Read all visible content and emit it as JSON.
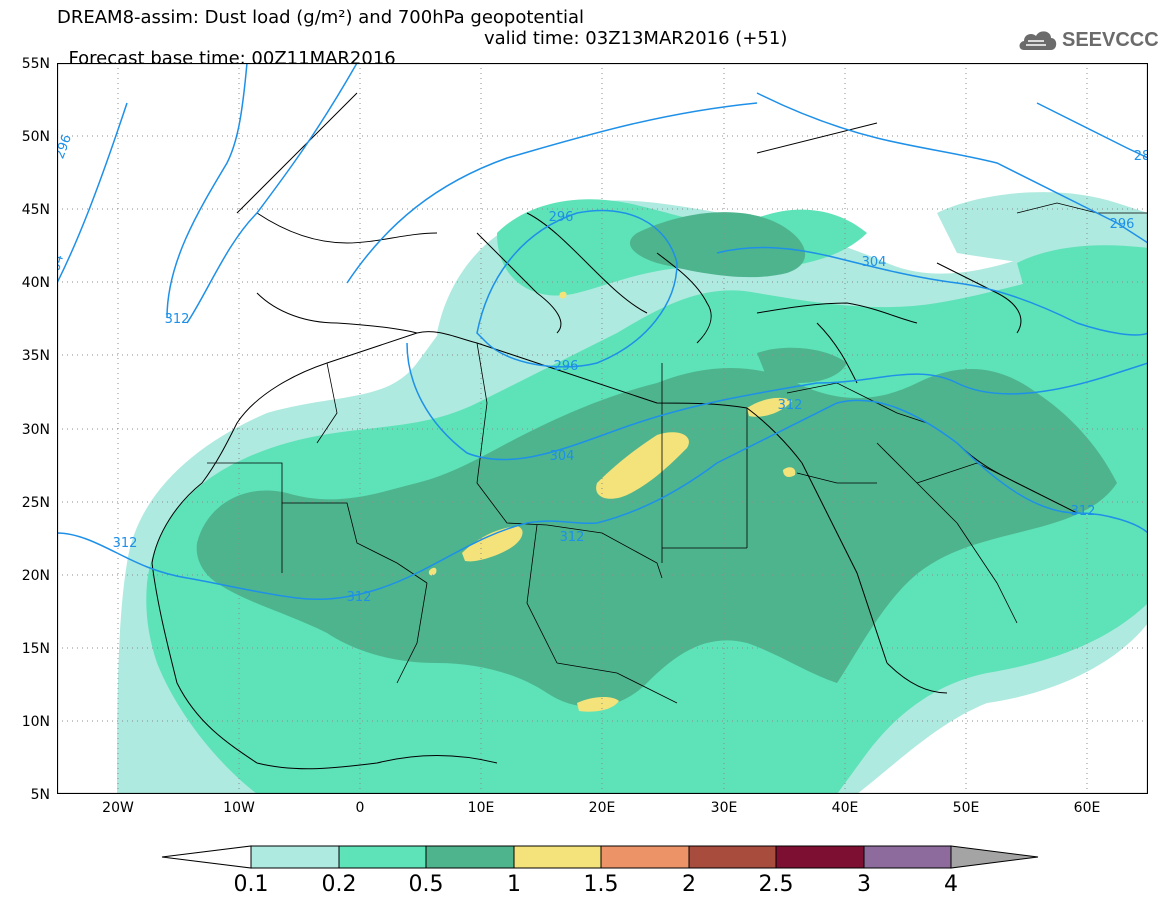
{
  "title_line1": "DREAM8-assim: Dust load (g/m²) and 700hPa geopotential",
  "title_line2_base": "Forecast base time: 00Z11MAR2016",
  "title_line2_valid": "valid time: 03Z13MAR2016 (+51)",
  "logo_text": "SEEVCCC",
  "logo_icon": "cloud-icon",
  "y_axis": {
    "labels": [
      "55N",
      "50N",
      "45N",
      "40N",
      "35N",
      "30N",
      "25N",
      "20N",
      "15N",
      "10N",
      "5N"
    ],
    "lat_values": [
      55,
      50,
      45,
      40,
      35,
      30,
      25,
      20,
      15,
      10,
      5
    ]
  },
  "x_axis": {
    "labels": [
      "20W",
      "10W",
      "0",
      "10E",
      "20E",
      "30E",
      "40E",
      "50E",
      "60E"
    ],
    "lon_values": [
      -20,
      -10,
      0,
      10,
      20,
      30,
      40,
      50,
      60
    ]
  },
  "map_extent": {
    "lon": [
      -25,
      65
    ],
    "lat": [
      5,
      55
    ]
  },
  "contour_labels": [
    "296",
    "304",
    "312",
    "296",
    "296",
    "304",
    "312",
    "312",
    "304",
    "312",
    "312",
    "312",
    "296",
    "28"
  ],
  "colorbar": {
    "labels": [
      "0.1",
      "0.2",
      "0.5",
      "1",
      "1.5",
      "2",
      "2.5",
      "3",
      "4"
    ],
    "colors": [
      "#aeeadf",
      "#5ee2b8",
      "#4eb48e",
      "#f4e27a",
      "#ec9468",
      "#a84d3e",
      "#7d0f32",
      "#8d6b9d"
    ],
    "under_color": "#ffffff",
    "over_color": "#a4a4a4"
  },
  "colors": {
    "land_outline": "#000000",
    "geopotential_contour": "#1e90e8",
    "grid": "#8c8c8c",
    "frame": "#000000"
  }
}
